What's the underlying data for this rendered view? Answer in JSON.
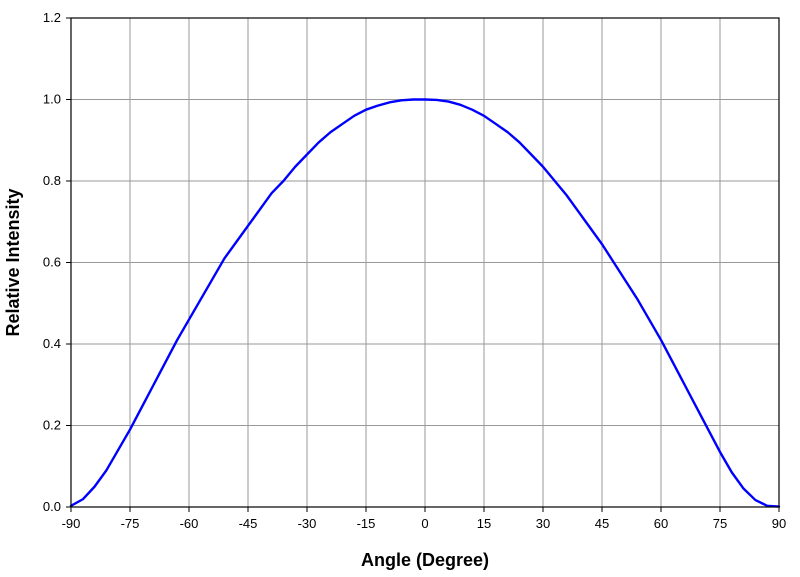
{
  "chart_data": {
    "type": "line",
    "xlabel": "Angle (Degree)",
    "ylabel": "Relative Intensity",
    "xlim": [
      -90,
      90
    ],
    "ylim": [
      0,
      1.2
    ],
    "x_ticks": [
      "-90",
      "-75",
      "-60",
      "-45",
      "-30",
      "-15",
      "0",
      "15",
      "30",
      "45",
      "60",
      "75",
      "90"
    ],
    "y_ticks": [
      "0.0",
      "0.2",
      "0.4",
      "0.6",
      "0.8",
      "1.0",
      "1.2"
    ],
    "grid": true,
    "legend": "none",
    "colors": {
      "series": "#0000ff",
      "grid": "#999999",
      "axis": "#000000"
    },
    "series": [
      {
        "x": [
          -90,
          -87,
          -84,
          -81,
          -78,
          -75,
          -72,
          -69,
          -66,
          -63,
          -60,
          -57,
          -54,
          -51,
          -48,
          -45,
          -42,
          -39,
          -36,
          -33,
          -30,
          -27,
          -24,
          -21,
          -18,
          -15,
          -12,
          -9,
          -6,
          -3,
          0,
          3,
          6,
          9,
          12,
          15,
          18,
          21,
          24,
          27,
          30,
          33,
          36,
          39,
          42,
          45,
          48,
          51,
          54,
          57,
          60,
          63,
          66,
          69,
          72,
          75,
          78,
          81,
          84,
          87,
          90
        ],
        "values": [
          0.003,
          0.019,
          0.05,
          0.09,
          0.14,
          0.19,
          0.245,
          0.3,
          0.355,
          0.41,
          0.46,
          0.51,
          0.56,
          0.61,
          0.65,
          0.69,
          0.73,
          0.77,
          0.8,
          0.835,
          0.865,
          0.895,
          0.92,
          0.94,
          0.96,
          0.975,
          0.985,
          0.993,
          0.998,
          1.0,
          1.0,
          0.999,
          0.995,
          0.987,
          0.975,
          0.96,
          0.94,
          0.92,
          0.895,
          0.865,
          0.835,
          0.8,
          0.765,
          0.725,
          0.685,
          0.645,
          0.6,
          0.555,
          0.51,
          0.46,
          0.41,
          0.355,
          0.3,
          0.245,
          0.19,
          0.135,
          0.085,
          0.045,
          0.017,
          0.003,
          0.001
        ]
      }
    ]
  }
}
